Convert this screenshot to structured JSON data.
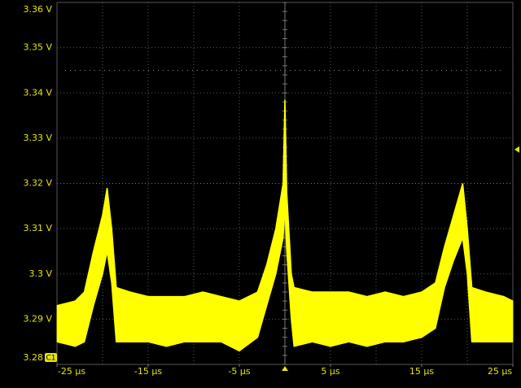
{
  "chart_data": {
    "type": "envelope",
    "channel_label": "C1",
    "color": "#ffff00",
    "x": [
      -25,
      -23,
      -22,
      -21,
      -20,
      -19.5,
      -19,
      -18.5,
      -17,
      -15,
      -13,
      -11,
      -9,
      -7,
      -5,
      -3,
      -2,
      -1,
      -0.2,
      0,
      0.2,
      0.7,
      1,
      3,
      5,
      7,
      9,
      11,
      13,
      15,
      16.5,
      17.5,
      18.5,
      19.5,
      20,
      20.5,
      22,
      24,
      25
    ],
    "lower": [
      3.285,
      3.284,
      3.285,
      3.293,
      3.3,
      3.305,
      3.298,
      3.285,
      3.285,
      3.285,
      3.284,
      3.285,
      3.285,
      3.285,
      3.283,
      3.286,
      3.293,
      3.3,
      3.308,
      3.315,
      3.305,
      3.29,
      3.284,
      3.285,
      3.284,
      3.285,
      3.284,
      3.285,
      3.285,
      3.286,
      3.288,
      3.297,
      3.303,
      3.308,
      3.3,
      3.285,
      3.285,
      3.285,
      3.285
    ],
    "upper": [
      3.293,
      3.294,
      3.296,
      3.305,
      3.313,
      3.319,
      3.31,
      3.297,
      3.296,
      3.295,
      3.295,
      3.295,
      3.296,
      3.295,
      3.294,
      3.296,
      3.302,
      3.31,
      3.32,
      3.3385,
      3.318,
      3.3,
      3.297,
      3.296,
      3.296,
      3.296,
      3.295,
      3.296,
      3.295,
      3.296,
      3.298,
      3.306,
      3.313,
      3.32,
      3.31,
      3.297,
      3.296,
      3.295,
      3.294
    ],
    "xlim": [
      -25,
      25
    ],
    "ylim": [
      3.28,
      3.36
    ],
    "xgrid": [
      -25,
      -20,
      -15,
      -10,
      -5,
      0,
      5,
      10,
      15,
      20,
      25
    ],
    "xticks": [
      {
        "value": -25,
        "label": "-25 µs"
      },
      {
        "value": -15,
        "label": "-15 µs"
      },
      {
        "value": -5,
        "label": "-5 µs"
      },
      {
        "value": 5,
        "label": "5 µs"
      },
      {
        "value": 15,
        "label": "15 µs"
      },
      {
        "value": 25,
        "label": "25 µs"
      }
    ],
    "yticks": [
      {
        "value": 3.28,
        "label": "3.28 V"
      },
      {
        "value": 3.29,
        "label": "3.29 V"
      },
      {
        "value": 3.3,
        "label": "3.3 V"
      },
      {
        "value": 3.31,
        "label": "3.31 V"
      },
      {
        "value": 3.32,
        "label": "3.32 V"
      },
      {
        "value": 3.33,
        "label": "3.33 V"
      },
      {
        "value": 3.34,
        "label": "3.34 V"
      },
      {
        "value": 3.35,
        "label": "3.35 V"
      },
      {
        "value": 3.36,
        "label": "3.36 V"
      }
    ],
    "reference_level": 3.345,
    "trigger_level": 3.3275,
    "trigger_time": 0
  }
}
